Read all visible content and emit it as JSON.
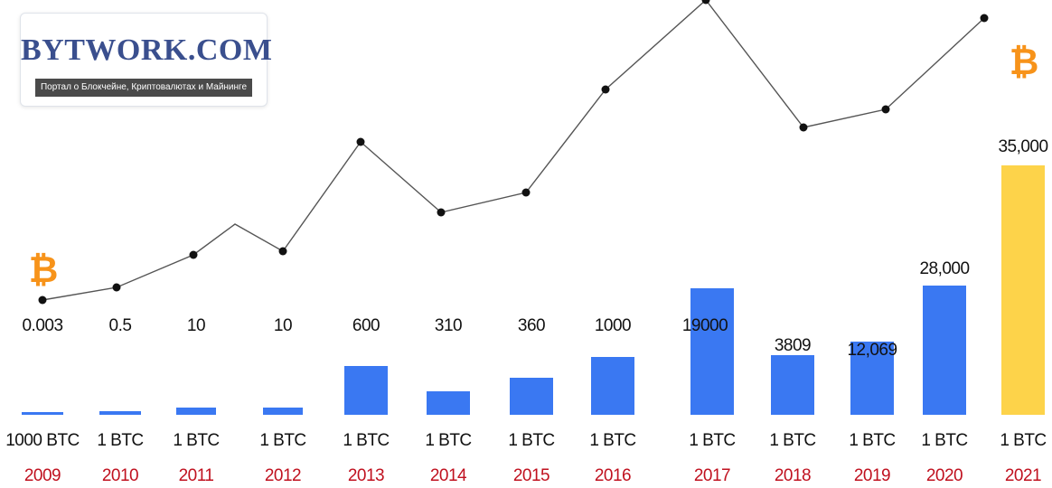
{
  "logo": {
    "title": "BYTWORK.COM",
    "subtitle": "Портал о Блокчейне, Криптовалютах и Майнинге"
  },
  "icons": {
    "start": "bitcoin-icon",
    "end": "bitcoin-icon",
    "color": "#f7931a"
  },
  "colors": {
    "bar": "#3a78f2",
    "bar_highlight": "#fdd34a",
    "year": "#c0111f",
    "line": "#555555",
    "point": "#111111"
  },
  "chart_data": {
    "type": "bar",
    "categories": [
      "2009",
      "2010",
      "2011",
      "2012",
      "2013",
      "2014",
      "2015",
      "2016",
      "2017",
      "2018",
      "2019",
      "2020",
      "2021"
    ],
    "values": [
      0.003,
      0.5,
      10,
      10,
      600,
      310,
      360,
      1000,
      19000,
      3809,
      12069,
      28000,
      35000
    ],
    "value_labels": [
      "0.003",
      "0.5",
      "10",
      "10",
      "600",
      "310",
      "360",
      "1000",
      "19000",
      "3809",
      "12,069",
      "28,000",
      "35,000"
    ],
    "unit_labels": [
      "1000 BTC",
      "1 BTC",
      "1 BTC",
      "1 BTC",
      "1 BTC",
      "1 BTC",
      "1 BTC",
      "1 BTC",
      "1 BTC",
      "1 BTC",
      "1 BTC",
      "1 BTC",
      "1 BTC"
    ],
    "highlight_index": 12,
    "trend_line": {
      "markers": [
        true,
        true,
        true,
        false,
        true,
        true,
        true,
        true,
        true,
        true,
        true,
        true,
        true
      ],
      "relative_level": [
        0.0,
        0.04,
        0.15,
        0.26,
        0.17,
        0.53,
        0.3,
        0.37,
        0.71,
        1.0,
        0.58,
        0.64,
        0.95
      ]
    },
    "title": "",
    "xlabel": "",
    "ylabel": ""
  }
}
